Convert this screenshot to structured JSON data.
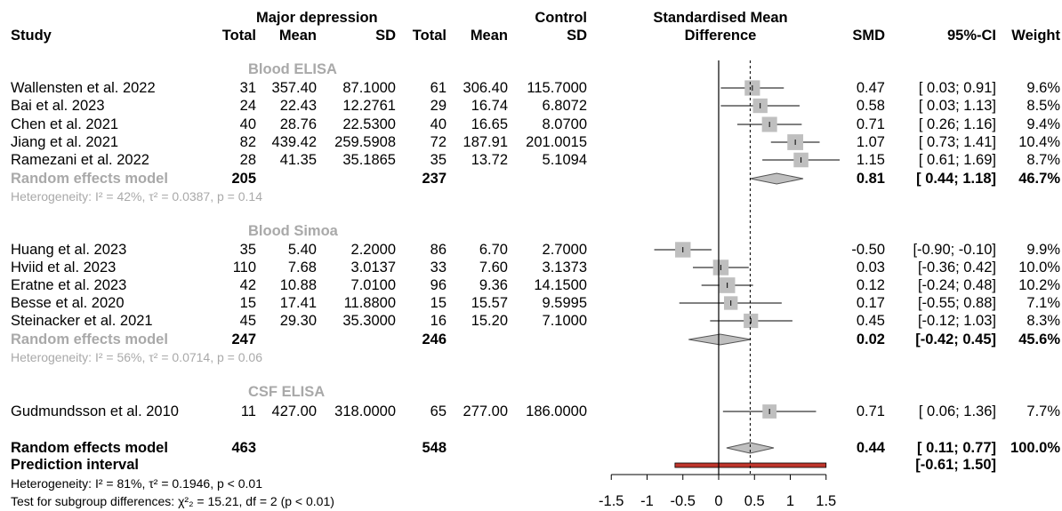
{
  "header": {
    "group1": "Major depression",
    "group2": "Control",
    "smd_title1": "Standardised Mean",
    "smd_title2": "Difference",
    "study": "Study",
    "total": "Total",
    "mean": "Mean",
    "sd": "SD",
    "smd": "SMD",
    "ci": "95%-CI",
    "weight": "Weight"
  },
  "colors": {
    "subgroup_label": "#a9a9a9",
    "box": "#bfbfbf",
    "diamond": "#bfbfbf",
    "prediction": "#c0362c",
    "text": "#000000"
  },
  "subgroups": [
    {
      "name": "Blood ELISA",
      "studies": [
        {
          "study": "Wallensten et al. 2022",
          "n1": "31",
          "m1": "357.40",
          "sd1": "87.1000",
          "n2": "61",
          "m2": "306.40",
          "sd2": "115.7000",
          "smd": "0.47",
          "ci": "[ 0.03; 0.91]",
          "weight": "9.6%"
        },
        {
          "study": "Bai et al. 2023",
          "n1": "24",
          "m1": "22.43",
          "sd1": "12.2761",
          "n2": "29",
          "m2": "16.74",
          "sd2": "6.8072",
          "smd": "0.58",
          "ci": "[ 0.03; 1.13]",
          "weight": "8.5%"
        },
        {
          "study": "Chen et al. 2021",
          "n1": "40",
          "m1": "28.76",
          "sd1": "22.5300",
          "n2": "40",
          "m2": "16.65",
          "sd2": "8.0700",
          "smd": "0.71",
          "ci": "[ 0.26; 1.16]",
          "weight": "9.4%"
        },
        {
          "study": "Jiang et al. 2021",
          "n1": "82",
          "m1": "439.42",
          "sd1": "259.5908",
          "n2": "72",
          "m2": "187.91",
          "sd2": "201.0015",
          "smd": "1.07",
          "ci": "[ 0.73; 1.41]",
          "weight": "10.4%"
        },
        {
          "study": "Ramezani et al. 2022",
          "n1": "28",
          "m1": "41.35",
          "sd1": "35.1865",
          "n2": "35",
          "m2": "13.72",
          "sd2": "5.1094",
          "smd": "1.15",
          "ci": "[ 0.61; 1.69]",
          "weight": "8.7%"
        }
      ],
      "model": {
        "label": "Random effects model",
        "n1": "205",
        "n2": "237",
        "smd": "0.81",
        "ci": "[ 0.44; 1.18]",
        "weight": "46.7%"
      },
      "heterogeneity": "Heterogeneity: I² = 42%, τ² = 0.0387, p = 0.14"
    },
    {
      "name": "Blood Simoa",
      "studies": [
        {
          "study": "Huang et al. 2023",
          "n1": "35",
          "m1": "5.40",
          "sd1": "2.2000",
          "n2": "86",
          "m2": "6.70",
          "sd2": "2.7000",
          "smd": "-0.50",
          "ci": "[-0.90; -0.10]",
          "weight": "9.9%"
        },
        {
          "study": "Hviid et al. 2023",
          "n1": "110",
          "m1": "7.68",
          "sd1": "3.0137",
          "n2": "33",
          "m2": "7.60",
          "sd2": "3.1373",
          "smd": "0.03",
          "ci": "[-0.36; 0.42]",
          "weight": "10.0%"
        },
        {
          "study": "Eratne et al. 2023",
          "n1": "42",
          "m1": "10.88",
          "sd1": "7.0100",
          "n2": "96",
          "m2": "9.36",
          "sd2": "14.1500",
          "smd": "0.12",
          "ci": "[-0.24; 0.48]",
          "weight": "10.2%"
        },
        {
          "study": "Besse et al. 2020",
          "n1": "15",
          "m1": "17.41",
          "sd1": "11.8800",
          "n2": "15",
          "m2": "15.57",
          "sd2": "9.5995",
          "smd": "0.17",
          "ci": "[-0.55; 0.88]",
          "weight": "7.1%"
        },
        {
          "study": "Steinacker et al. 2021",
          "n1": "45",
          "m1": "29.30",
          "sd1": "35.3000",
          "n2": "16",
          "m2": "15.20",
          "sd2": "7.1000",
          "smd": "0.45",
          "ci": "[-0.12; 1.03]",
          "weight": "8.3%"
        }
      ],
      "model": {
        "label": "Random effects model",
        "n1": "247",
        "n2": "246",
        "smd": "0.02",
        "ci": "[-0.42; 0.45]",
        "weight": "45.6%"
      },
      "heterogeneity": "Heterogeneity: I² = 56%, τ² = 0.0714, p = 0.06"
    },
    {
      "name": "CSF ELISA",
      "studies": [
        {
          "study": "Gudmundsson et al. 2010",
          "n1": "11",
          "m1": "427.00",
          "sd1": "318.0000",
          "n2": "65",
          "m2": "277.00",
          "sd2": "186.0000",
          "smd": "0.71",
          "ci": "[ 0.06; 1.36]",
          "weight": "7.7%"
        }
      ]
    }
  ],
  "overall": {
    "label": "Random effects model",
    "n1": "463",
    "n2": "548",
    "smd": "0.44",
    "ci": "[ 0.11; 0.77]",
    "weight": "100.0%",
    "prediction_label": "Prediction interval",
    "prediction_ci": "[-0.61; 1.50]",
    "heterogeneity": "Heterogeneity: I² = 81%, τ² = 0.1946, p < 0.01",
    "subgroup_test": "Test for subgroup differences: χ²₂ = 15.21, df = 2 (p < 0.01)"
  },
  "chart_data": {
    "type": "forest",
    "xlim": [
      -1.5,
      1.5
    ],
    "ticks": [
      "-1.5",
      "-1",
      "-0.5",
      "0",
      "0.5",
      "1",
      "1.5"
    ],
    "tick_values": [
      -1.5,
      -1,
      -0.5,
      0,
      0.5,
      1,
      1.5
    ],
    "reference_line": 0,
    "summary_line": 0.44,
    "studies": [
      {
        "name": "Wallensten et al. 2022",
        "smd": 0.47,
        "lower": 0.03,
        "upper": 0.91,
        "weight": 9.6
      },
      {
        "name": "Bai et al. 2023",
        "smd": 0.58,
        "lower": 0.03,
        "upper": 1.13,
        "weight": 8.5
      },
      {
        "name": "Chen et al. 2021",
        "smd": 0.71,
        "lower": 0.26,
        "upper": 1.16,
        "weight": 9.4
      },
      {
        "name": "Jiang et al. 2021",
        "smd": 1.07,
        "lower": 0.73,
        "upper": 1.41,
        "weight": 10.4
      },
      {
        "name": "Ramezani et al. 2022",
        "smd": 1.15,
        "lower": 0.61,
        "upper": 1.69,
        "weight": 8.7
      },
      {
        "name": "Huang et al. 2023",
        "smd": -0.5,
        "lower": -0.9,
        "upper": -0.1,
        "weight": 9.9
      },
      {
        "name": "Hviid et al. 2023",
        "smd": 0.03,
        "lower": -0.36,
        "upper": 0.42,
        "weight": 10.0
      },
      {
        "name": "Eratne et al. 2023",
        "smd": 0.12,
        "lower": -0.24,
        "upper": 0.48,
        "weight": 10.2
      },
      {
        "name": "Besse et al. 2020",
        "smd": 0.17,
        "lower": -0.55,
        "upper": 0.88,
        "weight": 7.1
      },
      {
        "name": "Steinacker et al. 2021",
        "smd": 0.45,
        "lower": -0.12,
        "upper": 1.03,
        "weight": 8.3
      },
      {
        "name": "Gudmundsson et al. 2010",
        "smd": 0.71,
        "lower": 0.06,
        "upper": 1.36,
        "weight": 7.7
      }
    ],
    "summaries": [
      {
        "name": "Blood ELISA",
        "smd": 0.81,
        "lower": 0.44,
        "upper": 1.18
      },
      {
        "name": "Blood Simoa",
        "smd": 0.02,
        "lower": -0.42,
        "upper": 0.45
      },
      {
        "name": "Overall",
        "smd": 0.44,
        "lower": 0.11,
        "upper": 0.77
      }
    ],
    "prediction_interval": {
      "lower": -0.61,
      "upper": 1.5
    }
  }
}
